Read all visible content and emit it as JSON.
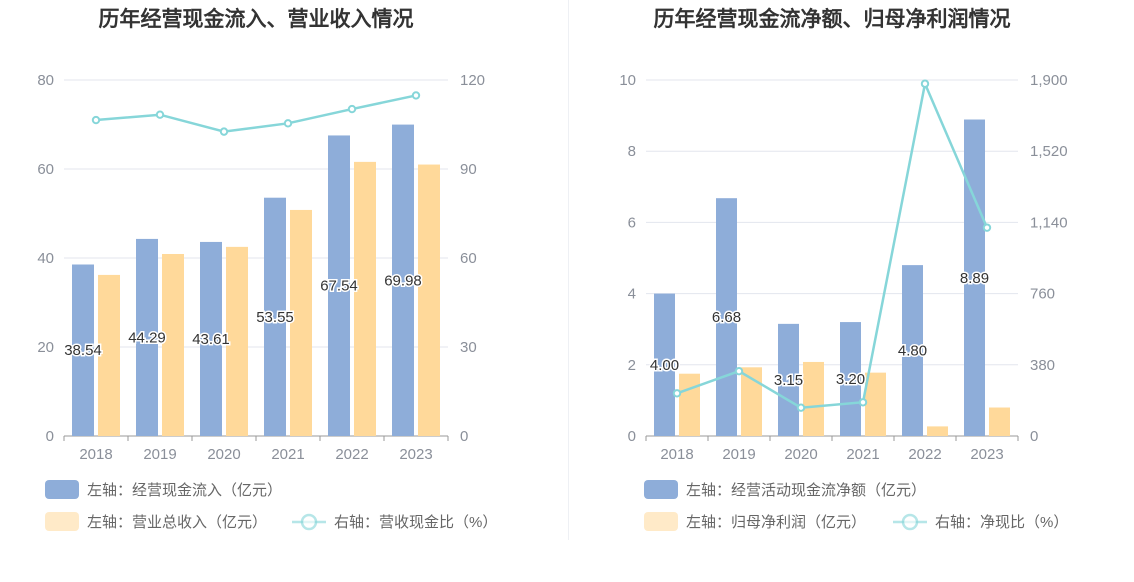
{
  "chart_data": [
    {
      "type": "bar",
      "title": "历年经营现金流入、营业收入情况",
      "categories": [
        "2018",
        "2019",
        "2020",
        "2021",
        "2022",
        "2023"
      ],
      "y_left_ticks": [
        "0",
        "20",
        "40",
        "60",
        "80"
      ],
      "y_left_range": [
        0,
        80
      ],
      "y_right_ticks": [
        "0",
        "30",
        "60",
        "90",
        "120"
      ],
      "y_right_range": [
        0,
        120
      ],
      "series": [
        {
          "name": "左轴：经营现金流入（亿元）",
          "type": "bar",
          "axis": "left",
          "color": "#8eadd9",
          "values": [
            38.54,
            44.29,
            43.61,
            53.55,
            67.54,
            69.98
          ]
        },
        {
          "name": "左轴：营业总收入（亿元）",
          "type": "bar",
          "axis": "left",
          "color": "#ffd99a",
          "values": [
            36.2,
            40.9,
            42.5,
            50.8,
            61.6,
            61.0
          ]
        },
        {
          "name": "右轴：营收现金比（%）",
          "type": "line",
          "axis": "right",
          "color": "#86d6d9",
          "values": [
            106.5,
            108.3,
            102.6,
            105.4,
            110.2,
            114.8
          ]
        }
      ],
      "data_labels": [
        "38.54",
        "44.29",
        "43.61",
        "53.55",
        "67.54",
        "69.98"
      ],
      "grid": true
    },
    {
      "type": "bar",
      "title": "历年经营现金流净额、归母净利润情况",
      "categories": [
        "2018",
        "2019",
        "2020",
        "2021",
        "2022",
        "2023"
      ],
      "y_left_ticks": [
        "0",
        "2",
        "4",
        "6",
        "8",
        "10"
      ],
      "y_left_range": [
        0,
        10
      ],
      "y_right_ticks": [
        "0",
        "380",
        "760",
        "1,140",
        "1,520",
        "1,900"
      ],
      "y_right_range": [
        0,
        1900
      ],
      "series": [
        {
          "name": "左轴：经营活动现金流净额（亿元）",
          "type": "bar",
          "axis": "left",
          "color": "#8eadd9",
          "values": [
            4.0,
            6.68,
            3.15,
            3.2,
            4.8,
            8.89
          ]
        },
        {
          "name": "左轴：归母净利润（亿元）",
          "type": "bar",
          "axis": "left",
          "color": "#ffd99a",
          "values": [
            1.75,
            1.93,
            2.08,
            1.78,
            0.27,
            0.8
          ]
        },
        {
          "name": "右轴：净现比（%）",
          "type": "line",
          "axis": "right",
          "color": "#86d6d9",
          "values": [
            228,
            346,
            151,
            180,
            1880,
            1112
          ]
        }
      ],
      "data_labels": [
        "4.00",
        "6.68",
        "3.15",
        "3.20",
        "4.80",
        "8.89"
      ],
      "grid": true
    }
  ]
}
